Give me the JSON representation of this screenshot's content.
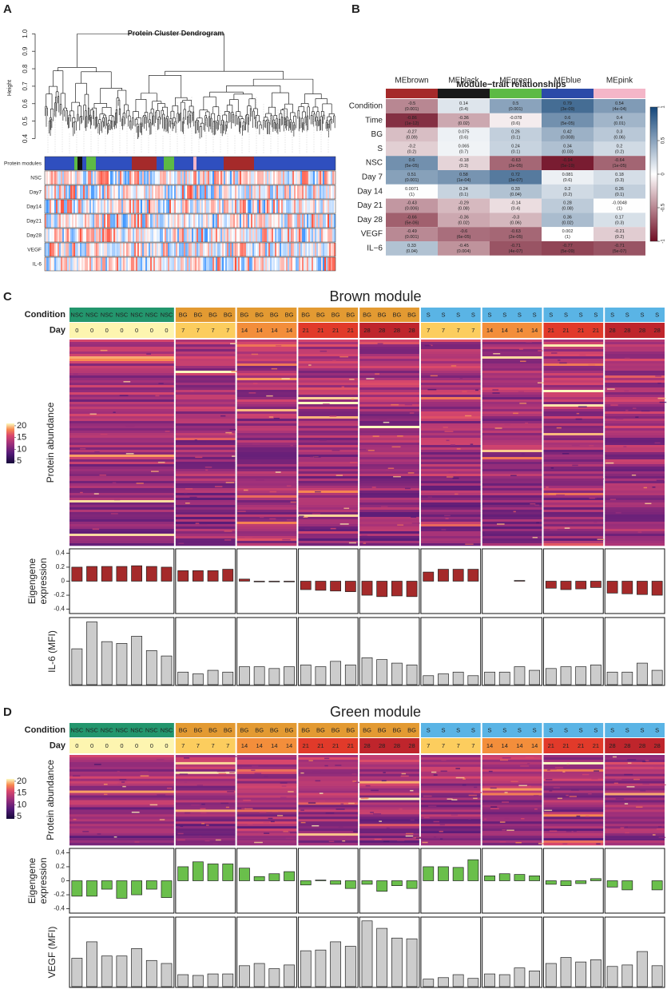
{
  "panels": {
    "a": "A",
    "b": "B",
    "c": "C",
    "d": "D"
  },
  "dendrogram": {
    "title": "Protein Cluster Dendrogram",
    "ylabel": "Height",
    "ylim": [
      0.37,
      1.02
    ],
    "yticks": [
      0.4,
      0.5,
      0.6,
      0.7,
      0.8,
      0.9,
      {
        "value": 1,
        "label": "1.0"
      }
    ],
    "row_labels": [
      "Protein modules",
      "NSC",
      "Day7",
      "Day14",
      "Day21",
      "Day28",
      "VEGF",
      "IL-6"
    ]
  },
  "module_trait": {
    "title": "Module−trait relationships",
    "modules": [
      "MEbrown",
      "MEblack",
      "MEgreen",
      "MEblue",
      "MEpink"
    ],
    "module_colors": [
      "#a52a2a",
      "#1a1a1a",
      "#5dba45",
      "#2b4aa8",
      "#f4b6c8"
    ],
    "traits": [
      "Condition",
      "Time",
      "BG",
      "S",
      "NSC",
      "Day 7",
      "Day 14",
      "Day 21",
      "Day 28",
      "VEGF",
      "IL−6"
    ],
    "correlations": [
      [
        -0.5,
        0.14,
        0.5,
        0.79,
        0.54
      ],
      [
        -0.86,
        -0.36,
        -0.078,
        0.6,
        0.4
      ],
      [
        -0.27,
        0.075,
        0.26,
        0.42,
        0.3
      ],
      [
        -0.2,
        0.065,
        0.24,
        0.34,
        0.2
      ],
      [
        0.6,
        -0.18,
        -0.63,
        -0.94,
        -0.64
      ],
      [
        0.51,
        0.58,
        0.72,
        0.081,
        0.18
      ],
      [
        0.0071,
        0.24,
        0.33,
        0.2,
        0.26
      ],
      [
        -0.43,
        -0.29,
        -0.14,
        0.28,
        -0.0048
      ],
      [
        -0.66,
        -0.36,
        -0.3,
        0.36,
        0.17
      ],
      [
        -0.49,
        -0.6,
        -0.63,
        0.002,
        -0.21
      ],
      [
        0.33,
        -0.45,
        -0.71,
        -0.77,
        -0.71
      ]
    ],
    "p_values": [
      [
        "(0.001)",
        "(0.4)",
        "(0.001)",
        "(3e-09)",
        "(4e-04)"
      ],
      [
        "(1e-12)",
        "(0.02)",
        "(0.6)",
        "(5e-05)",
        "(0.01)"
      ],
      [
        "(0.09)",
        "(0.6)",
        "(0.1)",
        "(0.008)",
        "(0.06)"
      ],
      [
        "(0.2)",
        "(0.7)",
        "(0.1)",
        "(0.03)",
        "(0.2)"
      ],
      [
        "(5e-05)",
        "(0.3)",
        "(2e-05)",
        "(5e-19)",
        "(1e-05)"
      ],
      [
        "(0.001)",
        "(1e-04)",
        "(3e-07)",
        "(0.6)",
        "(0.3)"
      ],
      [
        "(1)",
        "(0.1)",
        "(0.04)",
        "(0.2)",
        "(0.1)"
      ],
      [
        "(0.006)",
        "(0.08)",
        "(0.4)",
        "(0.08)",
        "(1)"
      ],
      [
        "(5e-06)",
        "(0.02)",
        "(0.06)",
        "(0.02)",
        "(0.3)"
      ],
      [
        "(0.001)",
        "(6e-05)",
        "(2e-05)",
        "(1)",
        "(0.2)"
      ],
      [
        "(0.04)",
        "(0.004)",
        "(4e-07)",
        "(5e-09)",
        "(5e-07)"
      ]
    ],
    "colorbar_lim": [
      -1,
      1
    ],
    "colorbar_ticks": [
      1,
      0.5,
      0,
      -0.5,
      -1
    ]
  },
  "modules": [
    {
      "title": "Brown module",
      "condition_label": "Condition",
      "day_label": "Day",
      "heatmap_label": "Protein abundance",
      "scale_lim": [
        4,
        21
      ],
      "scale_ticks": [
        20,
        15,
        10,
        5
      ],
      "conditions": [
        "NSC",
        "NSC",
        "NSC",
        "NSC",
        "NSC",
        "NSC",
        "NSC",
        "BG",
        "BG",
        "BG",
        "BG",
        "BG",
        "BG",
        "BG",
        "BG",
        "BG",
        "BG",
        "BG",
        "BG",
        "BG",
        "BG",
        "BG",
        "BG",
        "S",
        "S",
        "S",
        "S",
        "S",
        "S",
        "S",
        "S",
        "S",
        "S",
        "S",
        "S",
        "S",
        "S",
        "S",
        "S"
      ],
      "days": [
        0,
        0,
        0,
        0,
        0,
        0,
        0,
        7,
        7,
        7,
        7,
        14,
        14,
        14,
        14,
        21,
        21,
        21,
        21,
        28,
        28,
        28,
        28,
        7,
        7,
        7,
        7,
        14,
        14,
        14,
        14,
        21,
        21,
        21,
        21,
        28,
        28,
        28,
        28
      ]
    },
    {
      "title": "Green module",
      "condition_label": "Condition",
      "day_label": "Day",
      "heatmap_label": "Protein abundance",
      "scale_lim": [
        4,
        21
      ],
      "scale_ticks": [
        20,
        15,
        10,
        5
      ],
      "conditions": [
        "NSC",
        "NSC",
        "NSC",
        "NSC",
        "NSC",
        "NSC",
        "NSC",
        "BG",
        "BG",
        "BG",
        "BG",
        "BG",
        "BG",
        "BG",
        "BG",
        "BG",
        "BG",
        "BG",
        "BG",
        "BG",
        "BG",
        "BG",
        "BG",
        "S",
        "S",
        "S",
        "S",
        "S",
        "S",
        "S",
        "S",
        "S",
        "S",
        "S",
        "S",
        "S",
        "S",
        "S",
        "S"
      ],
      "days": [
        0,
        0,
        0,
        0,
        0,
        0,
        0,
        7,
        7,
        7,
        7,
        14,
        14,
        14,
        14,
        21,
        21,
        21,
        21,
        28,
        28,
        28,
        28,
        7,
        7,
        7,
        7,
        14,
        14,
        14,
        14,
        21,
        21,
        21,
        21,
        28,
        28,
        28,
        28
      ]
    }
  ],
  "chart_data": [
    {
      "type": "bar",
      "ylabel": [
        "Eigengene",
        "expression"
      ],
      "color": "#a52a2a",
      "ylim": [
        -0.45,
        0.45
      ],
      "yticks": [
        -0.4,
        -0.2,
        0,
        0.2,
        0.4
      ],
      "values": [
        0.2,
        0.21,
        0.21,
        0.21,
        0.22,
        0.21,
        0.2,
        0.15,
        0.15,
        0.15,
        0.17,
        0.03,
        -0.01,
        -0.01,
        -0.01,
        -0.12,
        -0.13,
        -0.14,
        -0.15,
        -0.2,
        -0.22,
        -0.21,
        -0.22,
        0.13,
        0.17,
        0.17,
        0.17,
        0,
        0,
        0.01,
        0,
        -0.1,
        -0.12,
        -0.11,
        -0.09,
        -0.17,
        -0.18,
        -0.19,
        -0.2
      ]
    },
    {
      "type": "bar",
      "ylabel": [
        "IL-6 (MFI)"
      ],
      "color": "#cccccc",
      "ylim": [
        0,
        37
      ],
      "values": [
        20,
        35,
        24,
        23,
        27,
        19,
        16,
        7,
        6,
        8,
        7,
        10,
        10,
        9,
        10,
        11,
        10,
        13,
        11,
        15,
        14,
        12,
        11,
        5,
        6,
        7,
        5,
        7,
        7,
        10,
        8,
        9,
        10,
        10,
        11,
        7,
        7,
        12,
        8
      ]
    },
    {
      "type": "bar",
      "ylabel": [
        "Eigengene",
        "expression"
      ],
      "color": "#6abf4b",
      "ylim": [
        -0.45,
        0.45
      ],
      "yticks": [
        -0.4,
        -0.2,
        0,
        0.2,
        0.4
      ],
      "values": [
        -0.22,
        -0.22,
        -0.12,
        -0.25,
        -0.2,
        -0.12,
        -0.24,
        0.2,
        0.27,
        0.24,
        0.24,
        0.18,
        0.06,
        0.1,
        0.13,
        -0.06,
        0.01,
        -0.05,
        -0.11,
        -0.05,
        -0.15,
        -0.07,
        -0.11,
        0.2,
        0.2,
        0.19,
        0.3,
        0.07,
        0.1,
        0.09,
        0.07,
        -0.05,
        -0.07,
        -0.04,
        0.03,
        -0.09,
        -0.13,
        0,
        -0.13
      ]
    },
    {
      "type": "bar",
      "ylabel": [
        "VEGF (MFI)"
      ],
      "color": "#cccccc",
      "ylim": [
        0,
        92
      ],
      "values": [
        38,
        60,
        41,
        41,
        51,
        35,
        31,
        16,
        15,
        17,
        17,
        28,
        31,
        24,
        29,
        48,
        49,
        60,
        54,
        88,
        78,
        65,
        64,
        10,
        12,
        16,
        11,
        17,
        16,
        25,
        21,
        31,
        39,
        33,
        36,
        27,
        29,
        47,
        28
      ]
    }
  ]
}
